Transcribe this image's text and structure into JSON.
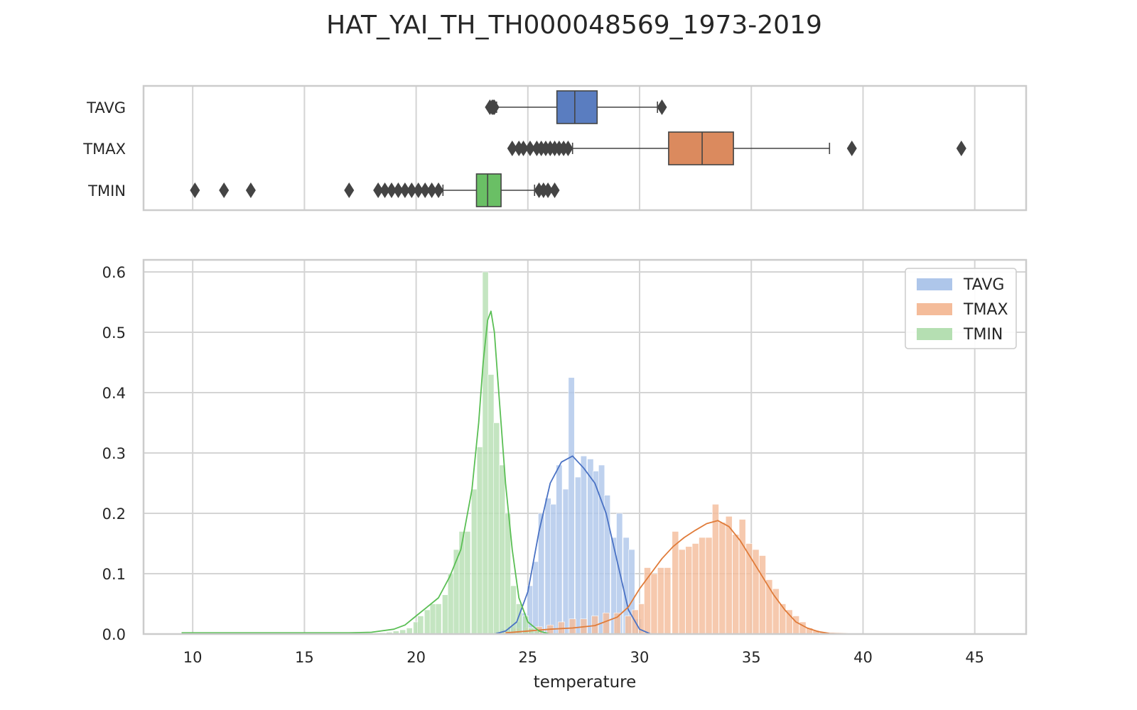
{
  "chart_data": [
    {
      "type": "boxplot",
      "title": "HAT_YAI_TH_TH000048569_1973-2019",
      "xlim": [
        7.8,
        47.3
      ],
      "grid": true,
      "categories": [
        "TAVG",
        "TMAX",
        "TMIN"
      ],
      "colors": [
        "#5a7dc0",
        "#db8a5e",
        "#6abf65"
      ],
      "boxes": [
        {
          "name": "TAVG",
          "whislo": 23.6,
          "q1": 26.3,
          "med": 27.1,
          "q3": 28.1,
          "whishi": 30.8,
          "fliers": [
            23.3,
            23.4,
            23.45,
            23.5,
            31.0
          ]
        },
        {
          "name": "TMAX",
          "whislo": 27.0,
          "q1": 31.3,
          "med": 32.8,
          "q3": 34.2,
          "whishi": 38.5,
          "fliers": [
            24.3,
            24.6,
            24.8,
            25.1,
            25.4,
            25.6,
            25.8,
            26.0,
            26.2,
            26.4,
            26.6,
            26.8,
            39.5,
            44.4
          ]
        },
        {
          "name": "TMIN",
          "whislo": 21.2,
          "q1": 22.7,
          "med": 23.2,
          "q3": 23.8,
          "whishi": 25.3,
          "fliers": [
            10.1,
            11.4,
            12.6,
            17.0,
            18.3,
            18.6,
            18.9,
            19.2,
            19.5,
            19.8,
            20.1,
            20.4,
            20.7,
            21.0,
            25.5,
            25.7,
            25.9,
            26.2
          ]
        }
      ]
    },
    {
      "type": "histogram+kde",
      "xlabel": "temperature",
      "ylabel": "",
      "xlim": [
        7.8,
        47.3
      ],
      "ylim": [
        0,
        0.62
      ],
      "xticks": [
        10,
        15,
        20,
        25,
        30,
        35,
        40,
        45
      ],
      "yticks": [
        0.0,
        0.1,
        0.2,
        0.3,
        0.4,
        0.5,
        0.6
      ],
      "legend_position": "top-right",
      "grid": true,
      "series": [
        {
          "name": "TAVG",
          "bar_color": "#aec6ea",
          "line_color": "#4a72c4",
          "bin_width": 0.27,
          "bins": [
            [
              23.4,
              0.002
            ],
            [
              23.7,
              0.004
            ],
            [
              23.95,
              0.008
            ],
            [
              24.25,
              0.012
            ],
            [
              24.55,
              0.02
            ],
            [
              24.8,
              0.035
            ],
            [
              25.1,
              0.08
            ],
            [
              25.35,
              0.12
            ],
            [
              25.6,
              0.2
            ],
            [
              25.9,
              0.225
            ],
            [
              26.15,
              0.215
            ],
            [
              26.4,
              0.28
            ],
            [
              26.7,
              0.24
            ],
            [
              26.95,
              0.425
            ],
            [
              27.25,
              0.26
            ],
            [
              27.5,
              0.295
            ],
            [
              27.8,
              0.29
            ],
            [
              28.05,
              0.27
            ],
            [
              28.3,
              0.28
            ],
            [
              28.55,
              0.23
            ],
            [
              28.85,
              0.16
            ],
            [
              29.1,
              0.2
            ],
            [
              29.4,
              0.16
            ],
            [
              29.65,
              0.14
            ],
            [
              29.95,
              0.025
            ]
          ],
          "kde": [
            [
              23.5,
              0.0
            ],
            [
              24.0,
              0.005
            ],
            [
              24.5,
              0.02
            ],
            [
              25.0,
              0.07
            ],
            [
              25.5,
              0.17
            ],
            [
              26.0,
              0.25
            ],
            [
              26.5,
              0.285
            ],
            [
              27.0,
              0.295
            ],
            [
              27.5,
              0.275
            ],
            [
              28.0,
              0.25
            ],
            [
              28.5,
              0.2
            ],
            [
              29.0,
              0.12
            ],
            [
              29.5,
              0.04
            ],
            [
              30.0,
              0.008
            ],
            [
              30.5,
              0.0
            ]
          ]
        },
        {
          "name": "TMAX",
          "bar_color": "#f4bc9a",
          "line_color": "#e07b39",
          "bin_width": 0.29,
          "bins": [
            [
              24.0,
              0.005
            ],
            [
              24.5,
              0.01
            ],
            [
              25.0,
              0.01
            ],
            [
              25.5,
              0.012
            ],
            [
              26.0,
              0.015
            ],
            [
              26.5,
              0.02
            ],
            [
              27.0,
              0.025
            ],
            [
              27.5,
              0.025
            ],
            [
              28.0,
              0.03
            ],
            [
              28.5,
              0.035
            ],
            [
              29.0,
              0.035
            ],
            [
              29.5,
              0.03
            ],
            [
              29.8,
              0.04
            ],
            [
              30.1,
              0.05
            ],
            [
              30.35,
              0.11
            ],
            [
              30.65,
              0.1
            ],
            [
              30.95,
              0.11
            ],
            [
              31.25,
              0.11
            ],
            [
              31.6,
              0.17
            ],
            [
              31.9,
              0.14
            ],
            [
              32.2,
              0.145
            ],
            [
              32.5,
              0.15
            ],
            [
              32.8,
              0.16
            ],
            [
              33.1,
              0.16
            ],
            [
              33.4,
              0.215
            ],
            [
              33.7,
              0.185
            ],
            [
              34.0,
              0.195
            ],
            [
              34.3,
              0.165
            ],
            [
              34.6,
              0.19
            ],
            [
              34.9,
              0.15
            ],
            [
              35.2,
              0.14
            ],
            [
              35.5,
              0.13
            ],
            [
              35.8,
              0.09
            ],
            [
              36.1,
              0.075
            ],
            [
              36.4,
              0.05
            ],
            [
              36.7,
              0.04
            ],
            [
              37.0,
              0.03
            ],
            [
              37.3,
              0.02
            ],
            [
              37.6,
              0.01
            ],
            [
              37.9,
              0.006
            ],
            [
              38.2,
              0.003
            ]
          ],
          "kde": [
            [
              24.0,
              0.002
            ],
            [
              25.0,
              0.005
            ],
            [
              26.0,
              0.008
            ],
            [
              27.0,
              0.01
            ],
            [
              28.0,
              0.014
            ],
            [
              29.0,
              0.028
            ],
            [
              29.5,
              0.045
            ],
            [
              30.0,
              0.075
            ],
            [
              30.5,
              0.1
            ],
            [
              31.0,
              0.125
            ],
            [
              31.5,
              0.145
            ],
            [
              32.0,
              0.16
            ],
            [
              32.5,
              0.172
            ],
            [
              33.0,
              0.183
            ],
            [
              33.5,
              0.188
            ],
            [
              34.0,
              0.178
            ],
            [
              34.5,
              0.155
            ],
            [
              35.0,
              0.125
            ],
            [
              35.5,
              0.095
            ],
            [
              36.0,
              0.065
            ],
            [
              36.5,
              0.04
            ],
            [
              37.0,
              0.02
            ],
            [
              37.5,
              0.01
            ],
            [
              38.0,
              0.004
            ],
            [
              38.5,
              0.001
            ],
            [
              39.5,
              0.0
            ]
          ]
        },
        {
          "name": "TMIN",
          "bar_color": "#b5dfb2",
          "line_color": "#5bbf55",
          "bin_width": 0.26,
          "bins": [
            [
              18.5,
              0.002
            ],
            [
              18.8,
              0.003
            ],
            [
              19.1,
              0.005
            ],
            [
              19.4,
              0.007
            ],
            [
              19.7,
              0.01
            ],
            [
              20.0,
              0.02
            ],
            [
              20.2,
              0.03
            ],
            [
              20.5,
              0.04
            ],
            [
              20.75,
              0.05
            ],
            [
              21.0,
              0.05
            ],
            [
              21.3,
              0.065
            ],
            [
              21.55,
              0.1
            ],
            [
              21.8,
              0.14
            ],
            [
              22.05,
              0.17
            ],
            [
              22.3,
              0.17
            ],
            [
              22.6,
              0.24
            ],
            [
              22.85,
              0.31
            ],
            [
              23.1,
              0.6
            ],
            [
              23.35,
              0.43
            ],
            [
              23.6,
              0.35
            ],
            [
              23.85,
              0.28
            ],
            [
              24.1,
              0.2
            ],
            [
              24.35,
              0.08
            ],
            [
              24.6,
              0.05
            ],
            [
              24.9,
              0.03
            ],
            [
              25.15,
              0.01
            ],
            [
              25.4,
              0.005
            ]
          ],
          "kde": [
            [
              9.5,
              0.002
            ],
            [
              12.0,
              0.002
            ],
            [
              15.0,
              0.002
            ],
            [
              17.0,
              0.002
            ],
            [
              18.0,
              0.003
            ],
            [
              19.0,
              0.008
            ],
            [
              19.5,
              0.015
            ],
            [
              20.0,
              0.03
            ],
            [
              20.5,
              0.045
            ],
            [
              21.0,
              0.06
            ],
            [
              21.5,
              0.095
            ],
            [
              22.0,
              0.14
            ],
            [
              22.5,
              0.24
            ],
            [
              22.8,
              0.35
            ],
            [
              23.0,
              0.45
            ],
            [
              23.2,
              0.52
            ],
            [
              23.35,
              0.535
            ],
            [
              23.5,
              0.5
            ],
            [
              23.7,
              0.4
            ],
            [
              24.0,
              0.25
            ],
            [
              24.3,
              0.14
            ],
            [
              24.6,
              0.06
            ],
            [
              25.0,
              0.02
            ],
            [
              25.5,
              0.005
            ],
            [
              26.0,
              0.0
            ]
          ]
        }
      ]
    }
  ]
}
